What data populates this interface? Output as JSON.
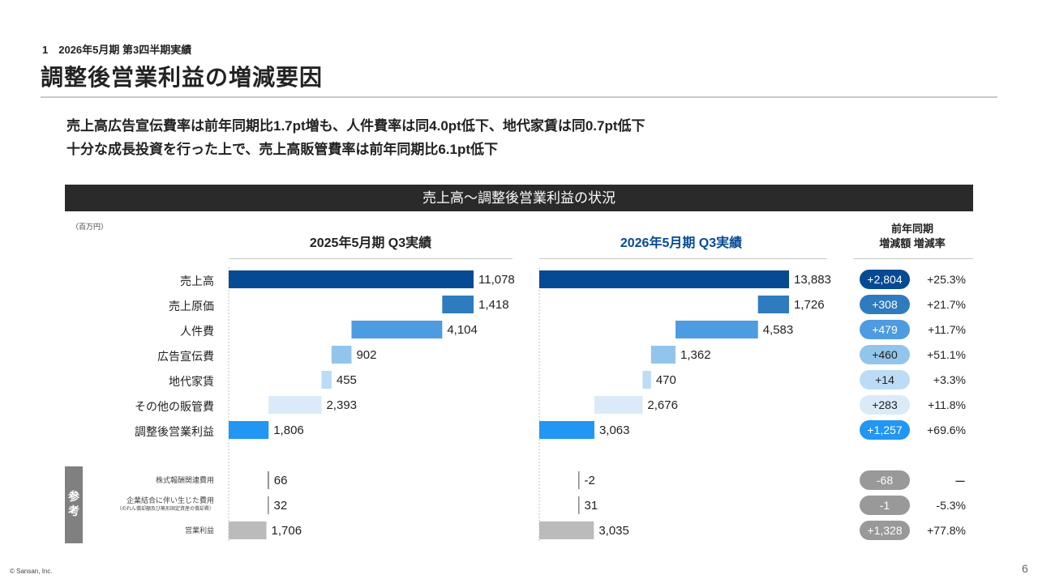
{
  "header": {
    "section": "1　2026年5月期 第3四半期実績",
    "title": "調整後営業利益の増減要因"
  },
  "messages": [
    "売上高広告宣伝費率は前年同期比1.7pt増も、人件費率は同4.0pt低下、地代家賃は同0.7pt低下",
    "十分な成長投資を行った上で、売上高販管費率は前年同期比6.1pt低下"
  ],
  "banner": "売上高～調整後営業利益の状況",
  "unit": "（百万円）",
  "ref_label": "参考",
  "change_header": {
    "line1": "前年同期",
    "line2": "増減額 増減率"
  },
  "footer": {
    "copyright": "© Sansan, Inc.",
    "page": "6"
  },
  "colors": {
    "dark_blue": "#064a93",
    "mid_blue": "#2f7bc0",
    "blue": "#4d9be0",
    "light_blue": "#92c5ec",
    "pale_blue": "#bcdcf5",
    "paler_blue": "#daeaf8",
    "bright_blue": "#2196f3",
    "gray": "#bbbbbb",
    "pill_gray": "#999999"
  },
  "chart_data": [
    {
      "type": "bar",
      "subtype": "waterfall",
      "title": "2025年5月期 Q3実績",
      "categories": [
        "売上高",
        "売上原価",
        "人件費",
        "広告宣伝費",
        "地代家賃",
        "その他の販管費",
        "調整後営業利益"
      ],
      "values": [
        11078,
        1418,
        4104,
        902,
        455,
        2393,
        1806
      ],
      "labels": [
        "11,078",
        "1,418",
        "4,104",
        "902",
        "455",
        "2,393",
        "1,806"
      ],
      "reference": {
        "categories": [
          "株式報酬関連費用",
          "企業結合に伴い生じた費用",
          "営業利益"
        ],
        "category_note": "（のれん償却額及び無形固定資産の償却費）",
        "values": [
          66,
          32,
          1706
        ],
        "labels": [
          "66",
          "32",
          "1,706"
        ]
      }
    },
    {
      "type": "bar",
      "subtype": "waterfall",
      "title": "2026年5月期 Q3実績",
      "categories": [
        "売上高",
        "売上原価",
        "人件費",
        "広告宣伝費",
        "地代家賃",
        "その他の販管費",
        "調整後営業利益"
      ],
      "values": [
        13883,
        1726,
        4583,
        1362,
        470,
        2676,
        3063
      ],
      "labels": [
        "13,883",
        "1,726",
        "4,583",
        "1,362",
        "470",
        "2,676",
        "3,063"
      ],
      "reference": {
        "categories": [
          "株式報酬関連費用",
          "企業結合に伴い生じた費用",
          "営業利益"
        ],
        "values": [
          -2,
          31,
          3035
        ],
        "labels": [
          "-2",
          "31",
          "3,035"
        ]
      }
    },
    {
      "type": "table",
      "title": "前年同期 増減額 増減率",
      "amounts": [
        "+2,804",
        "+308",
        "+479",
        "+460",
        "+14",
        "+283",
        "+1,257"
      ],
      "rates": [
        "+25.3%",
        "+21.7%",
        "+11.7%",
        "+51.1%",
        "+3.3%",
        "+11.8%",
        "+69.6%"
      ],
      "ref_amounts": [
        "-68",
        "-1",
        "+1,328"
      ],
      "ref_rates": [
        "ー",
        "-5.3%",
        "+77.8%"
      ]
    }
  ]
}
